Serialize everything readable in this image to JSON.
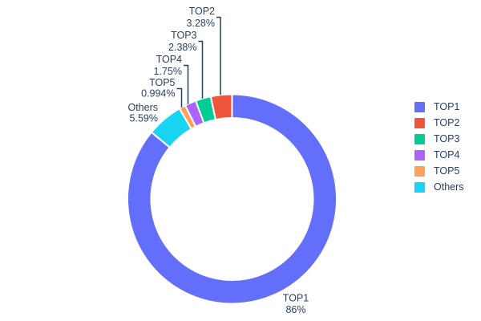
{
  "figure": {
    "background": "#ffffff"
  },
  "chart_data": {
    "type": "pie",
    "subtype": "donut",
    "hole": 0.78,
    "labels": [
      "TOP1",
      "TOP2",
      "TOP3",
      "TOP4",
      "TOP5",
      "Others"
    ],
    "values": [
      86,
      3.28,
      2.38,
      1.75,
      0.994,
      5.59
    ],
    "display_percents": [
      "86%",
      "3.28%",
      "2.38%",
      "1.75%",
      "0.994%",
      "5.59%"
    ],
    "colors": [
      "#636EFA",
      "#EF553B",
      "#00CC96",
      "#AB63FA",
      "#FFA15A",
      "#19D3F3"
    ],
    "text_color": "#2a3f5f",
    "leader_line_color": "#2a3f5f",
    "slice_gap_color": "#ffffff",
    "title": "",
    "arrangement": "largest slice sweeps clockwise from 12 o'clock; remaining slices fan counterclockwise from 12 o'clock in rank order",
    "legend": {
      "position": "right",
      "items": [
        "TOP1",
        "TOP2",
        "TOP3",
        "TOP4",
        "TOP5",
        "Others"
      ]
    }
  }
}
